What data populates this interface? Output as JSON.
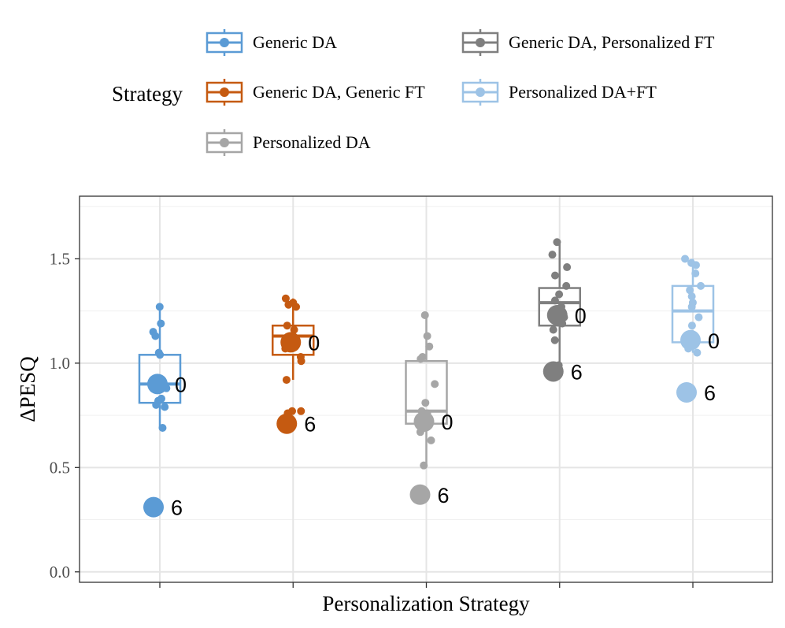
{
  "chart_data": {
    "type": "boxplot",
    "title": "",
    "xlabel": "Personalization Strategy",
    "ylabel": "ΔPESQ",
    "ylim": [
      -0.05,
      1.8
    ],
    "yticks": [
      "0.0",
      "0.5",
      "1.0",
      "1.5"
    ],
    "ytick_values": [
      0.0,
      0.5,
      1.0,
      1.5
    ],
    "grid": true,
    "legend_title": "Strategy",
    "legend_position": "top",
    "series": [
      {
        "name": "Generic DA",
        "color": "#5b9bd5",
        "box": {
          "q1": 0.81,
          "median": 0.9,
          "q3": 1.04,
          "whisker_low": 0.69,
          "whisker_high": 1.27
        },
        "points": [
          1.27,
          1.19,
          1.15,
          1.13,
          1.05,
          1.04,
          0.91,
          0.88,
          0.83,
          0.82,
          0.8,
          0.79,
          0.69
        ],
        "highlights": [
          {
            "label": "0",
            "value": 0.9
          },
          {
            "label": "6",
            "value": 0.31
          }
        ]
      },
      {
        "name": "Generic DA, Generic FT",
        "color": "#c55a11",
        "box": {
          "q1": 1.04,
          "median": 1.13,
          "q3": 1.18,
          "whisker_low": 0.92,
          "whisker_high": 1.31
        },
        "points": [
          1.31,
          1.29,
          1.28,
          1.27,
          1.18,
          1.16,
          1.13,
          1.1,
          1.07,
          1.03,
          1.01,
          0.92,
          0.77,
          0.77,
          0.76
        ],
        "highlights": [
          {
            "label": "0",
            "value": 1.1
          },
          {
            "label": "6",
            "value": 0.71
          }
        ]
      },
      {
        "name": "Personalized DA",
        "color": "#a6a6a6",
        "box": {
          "q1": 0.71,
          "median": 0.77,
          "q3": 1.01,
          "whisker_low": 0.51,
          "whisker_high": 1.23
        },
        "points": [
          1.23,
          1.13,
          1.08,
          1.03,
          1.02,
          0.9,
          0.81,
          0.77,
          0.76,
          0.73,
          0.67,
          0.63,
          0.51
        ],
        "highlights": [
          {
            "label": "0",
            "value": 0.72
          },
          {
            "label": "6",
            "value": 0.37
          }
        ]
      },
      {
        "name": "Generic DA, Personalized FT",
        "color": "#7f7f7f",
        "box": {
          "q1": 1.18,
          "median": 1.29,
          "q3": 1.36,
          "whisker_low": 0.97,
          "whisker_high": 1.58
        },
        "points": [
          1.58,
          1.52,
          1.46,
          1.42,
          1.37,
          1.33,
          1.3,
          1.27,
          1.25,
          1.22,
          1.19,
          1.16,
          1.11,
          0.99,
          0.97
        ],
        "highlights": [
          {
            "label": "0",
            "value": 1.23
          },
          {
            "label": "6",
            "value": 0.96
          }
        ]
      },
      {
        "name": "Personalized DA+FT",
        "color": "#9dc3e6",
        "box": {
          "q1": 1.1,
          "median": 1.25,
          "q3": 1.37,
          "whisker_low": 1.05,
          "whisker_high": 1.5
        },
        "points": [
          1.5,
          1.48,
          1.47,
          1.43,
          1.37,
          1.35,
          1.32,
          1.29,
          1.27,
          1.22,
          1.18,
          1.14,
          1.1,
          1.07,
          1.05
        ],
        "highlights": [
          {
            "label": "0",
            "value": 1.11
          },
          {
            "label": "6",
            "value": 0.86
          }
        ]
      }
    ]
  }
}
